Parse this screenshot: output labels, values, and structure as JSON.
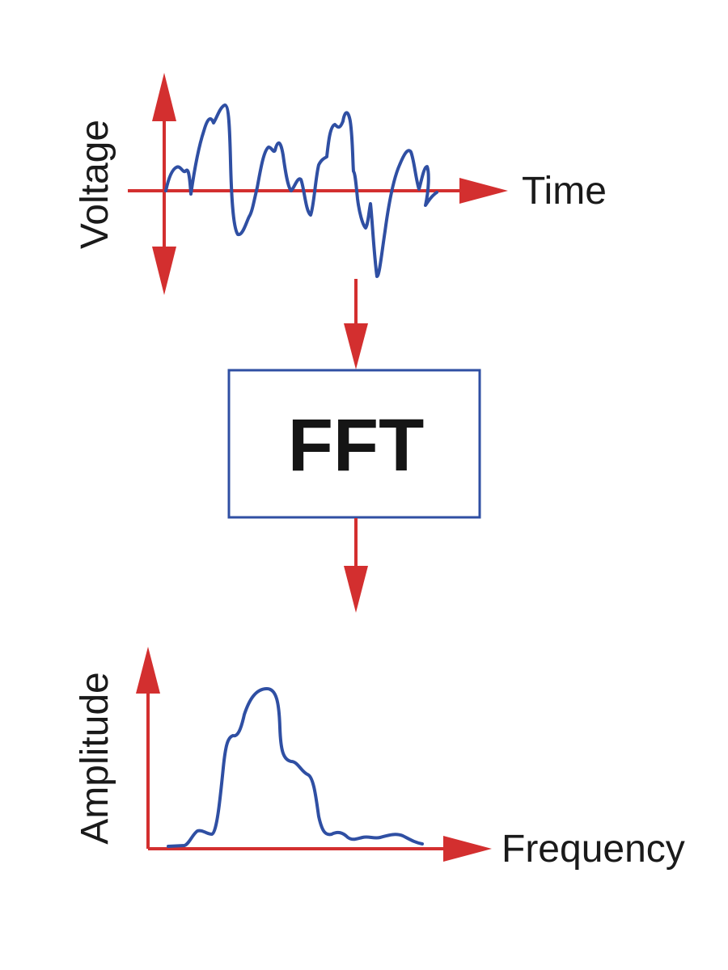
{
  "diagram": {
    "top_plot": {
      "y_label": "Voltage",
      "x_label": "Time"
    },
    "process_box": {
      "label": "FFT"
    },
    "bottom_plot": {
      "y_label": "Amplitude",
      "x_label": "Frequency"
    }
  },
  "colors": {
    "axis": "#d32f2f",
    "signal": "#2f4fa3",
    "box_border": "#2f4fa3",
    "text": "#1a1a1a"
  }
}
